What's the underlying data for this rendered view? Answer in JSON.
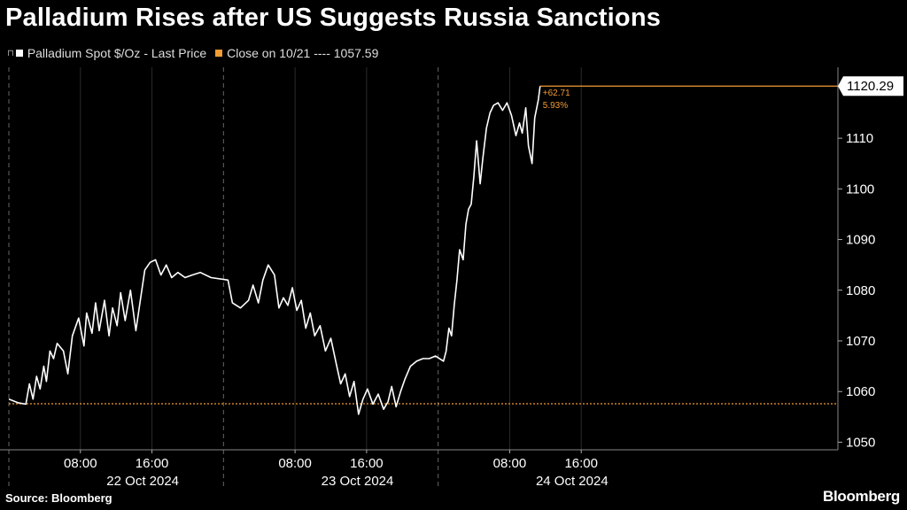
{
  "title": "Palladium Rises after US Suggests Russia Sanctions",
  "legend": {
    "series_label": "Palladium Spot $/Oz - Last Price",
    "close_label": "Close on 10/21",
    "close_dashes": "----",
    "close_value": "1057.59"
  },
  "source": "Source: Bloomberg",
  "brand": "Bloomberg",
  "colors": {
    "price": "#ffffff",
    "reference": "#f39c34",
    "grid": "#555555",
    "background": "#000000"
  },
  "chart_data": {
    "type": "line",
    "title": "Palladium Rises after US Suggests Russia Sanctions",
    "xlabel": "",
    "ylabel": "",
    "ylim": [
      1048.5,
      1124
    ],
    "yticks": [
      1050,
      1060,
      1070,
      1080,
      1090,
      1100,
      1110
    ],
    "x_hours_range": [
      0,
      92.7
    ],
    "day_labels": [
      {
        "label": "22 Oct 2024",
        "center_hour": 12
      },
      {
        "label": "23 Oct 2024",
        "center_hour": 36
      },
      {
        "label": "24 Oct 2024",
        "center_hour": 60
      }
    ],
    "time_labels": [
      {
        "label": "08:00",
        "hour": 8
      },
      {
        "label": "16:00",
        "hour": 16
      },
      {
        "label": "08:00",
        "hour": 32
      },
      {
        "label": "16:00",
        "hour": 40
      },
      {
        "label": "08:00",
        "hour": 56
      },
      {
        "label": "16:00",
        "hour": 64
      }
    ],
    "day_boundaries": [
      0,
      24,
      48
    ],
    "reference_line": {
      "name": "Close on 10/21",
      "value": 1057.59
    },
    "last_value": {
      "label": "1120.29",
      "value": 1120.29
    },
    "change_annotation": {
      "abs": "+62.71",
      "pct": "5.93%"
    },
    "series": [
      {
        "name": "Palladium Spot $/Oz - Last Price",
        "x_hours": [
          0.0,
          1.0,
          1.9,
          2.3,
          2.7,
          3.1,
          3.5,
          3.9,
          4.2,
          4.6,
          5.0,
          5.4,
          6.1,
          6.6,
          7.1,
          7.8,
          8.4,
          8.7,
          9.3,
          9.7,
          10.1,
          10.7,
          11.2,
          11.6,
          12.1,
          12.5,
          13.0,
          13.6,
          14.2,
          14.7,
          15.2,
          15.8,
          16.4,
          17.0,
          17.6,
          18.2,
          18.9,
          19.7,
          20.5,
          21.4,
          22.6,
          24.5,
          25.0,
          25.9,
          26.8,
          27.3,
          27.9,
          28.4,
          29.0,
          29.7,
          30.2,
          30.7,
          31.2,
          31.7,
          32.2,
          32.7,
          33.2,
          33.7,
          34.2,
          34.8,
          35.4,
          36.0,
          36.6,
          37.1,
          37.6,
          38.1,
          38.6,
          39.1,
          39.6,
          40.1,
          40.7,
          41.3,
          41.9,
          42.4,
          42.8,
          43.3,
          43.8,
          44.3,
          44.9,
          45.6,
          46.3,
          47.0,
          47.7,
          48.6,
          48.9,
          49.2,
          49.5,
          49.8,
          50.1,
          50.4,
          50.8,
          51.1,
          51.4,
          51.7,
          52.0,
          52.3,
          52.7,
          53.0,
          53.4,
          53.8,
          54.2,
          54.7,
          55.2,
          55.7,
          56.2,
          56.7,
          57.1,
          57.4,
          57.8,
          58.1,
          58.5,
          58.8,
          59.2,
          59.4
        ],
        "values": [
          1058.5,
          1057.8,
          1057.5,
          1061.5,
          1058.5,
          1063.0,
          1060.5,
          1065.0,
          1062.0,
          1068.0,
          1066.5,
          1069.5,
          1068.0,
          1063.5,
          1071.0,
          1074.5,
          1069.0,
          1075.5,
          1071.5,
          1077.5,
          1072.0,
          1078.0,
          1071.0,
          1076.5,
          1073.0,
          1079.5,
          1074.0,
          1080.0,
          1072.0,
          1078.0,
          1084.0,
          1085.5,
          1086.0,
          1083.0,
          1085.0,
          1082.5,
          1083.5,
          1082.5,
          1083.0,
          1083.5,
          1082.5,
          1082.0,
          1077.5,
          1076.5,
          1078.0,
          1081.0,
          1077.5,
          1082.0,
          1085.0,
          1083.0,
          1076.5,
          1078.5,
          1077.0,
          1080.5,
          1076.0,
          1078.0,
          1072.5,
          1075.5,
          1071.0,
          1073.0,
          1068.0,
          1070.5,
          1065.5,
          1061.5,
          1063.5,
          1059.0,
          1062.0,
          1055.5,
          1058.5,
          1060.5,
          1057.5,
          1059.5,
          1056.5,
          1058.0,
          1061.0,
          1057.0,
          1060.0,
          1062.5,
          1065.0,
          1066.0,
          1066.5,
          1066.5,
          1067.0,
          1066.0,
          1068.0,
          1072.5,
          1071.0,
          1077.0,
          1082.0,
          1088.0,
          1086.0,
          1093.0,
          1096.0,
          1097.0,
          1102.5,
          1109.5,
          1101.0,
          1106.0,
          1112.0,
          1115.0,
          1116.5,
          1117.0,
          1115.5,
          1117.0,
          1114.5,
          1110.5,
          1113.0,
          1111.0,
          1116.0,
          1108.5,
          1105.0,
          1114.0,
          1117.5,
          1120.29
        ]
      }
    ]
  }
}
